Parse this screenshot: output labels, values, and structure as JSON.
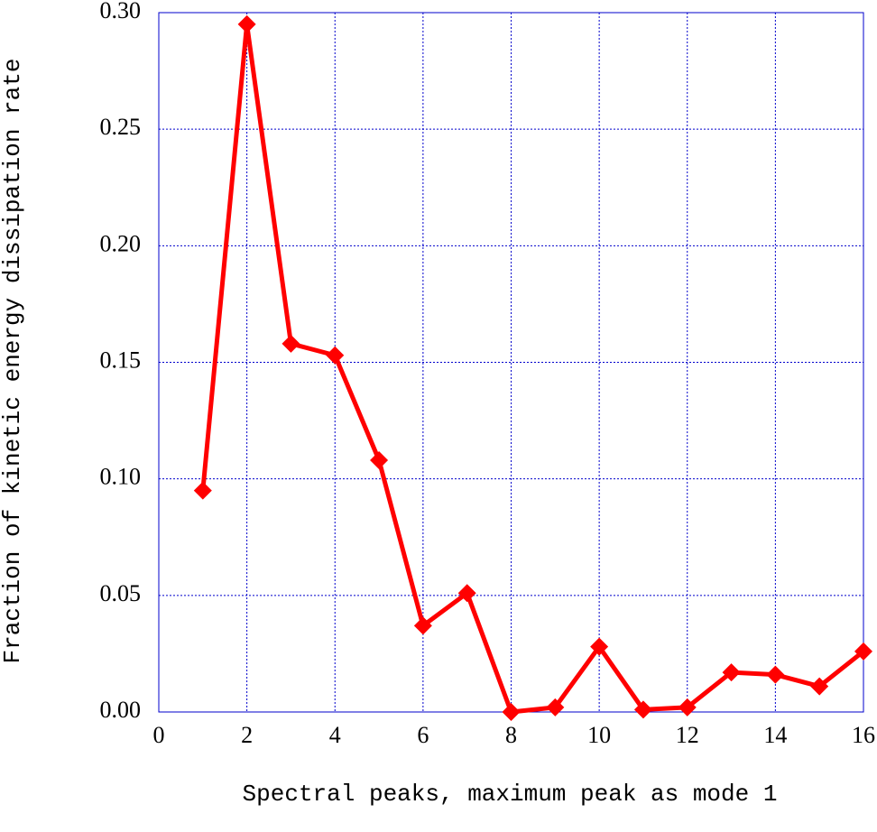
{
  "chart_data": {
    "type": "line",
    "x_label": "Spectral peaks, maximum peak as mode 1",
    "y_label": "Fraction of kinetic energy dissipation rate",
    "x": [
      1,
      2,
      3,
      4,
      5,
      6,
      7,
      8,
      9,
      10,
      11,
      12,
      13,
      14,
      15,
      16
    ],
    "values": [
      0.095,
      0.295,
      0.158,
      0.153,
      0.108,
      0.037,
      0.051,
      0.0,
      0.002,
      0.028,
      0.001,
      0.002,
      0.017,
      0.016,
      0.011,
      0.026
    ],
    "color": "#ff0000",
    "xlim": [
      0,
      16
    ],
    "xticks": [
      0,
      2,
      4,
      6,
      8,
      10,
      12,
      14,
      16
    ],
    "ylim": [
      0,
      0.3
    ],
    "yticks": [
      {
        "value": 0,
        "label": "0.00"
      },
      {
        "value": 0.05,
        "label": "0.05"
      },
      {
        "value": 0.1,
        "label": "0.10"
      },
      {
        "value": 0.15,
        "label": "0.15"
      },
      {
        "value": 0.2,
        "label": "0.20"
      },
      {
        "value": 0.25,
        "label": "0.25"
      },
      {
        "value": 0.3,
        "label": "0.30"
      }
    ],
    "grid": true
  }
}
